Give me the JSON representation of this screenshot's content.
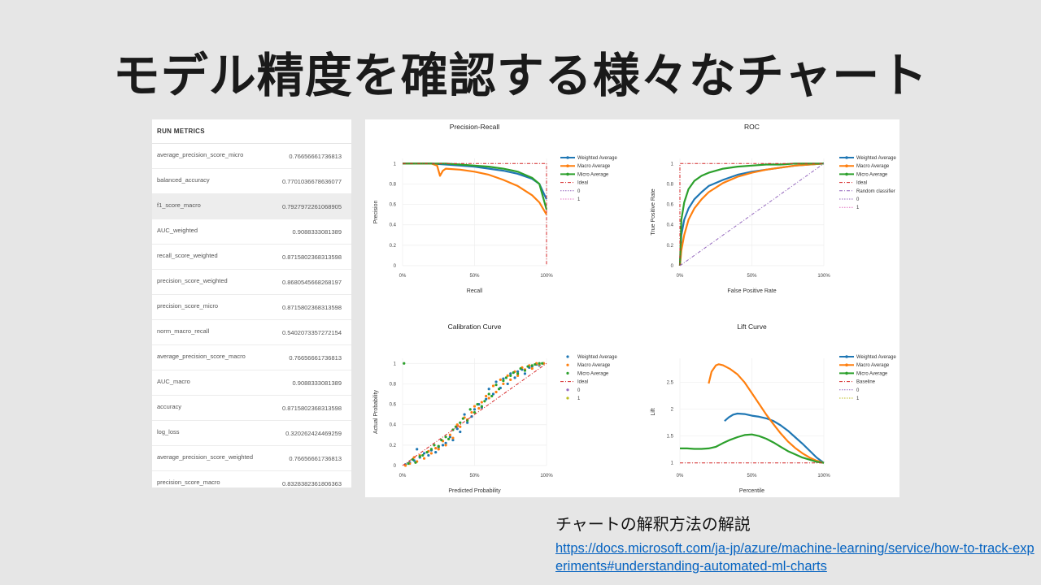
{
  "slide": {
    "title": "モデル精度を確認する様々なチャート",
    "caption": "チャートの解釈方法の解説",
    "link_text": "https://docs.microsoft.com/ja-jp/azure/machine-learning/service/how-to-track-experiments#understanding-automated-ml-charts"
  },
  "run_metrics": {
    "header": "RUN METRICS",
    "rows": [
      {
        "name": "average_precision_score_micro",
        "value": "0.76656661736813"
      },
      {
        "name": "balanced_accuracy",
        "value": "0.7701036678636077"
      },
      {
        "name": "f1_score_macro",
        "value": "0.7927972261068905"
      },
      {
        "name": "AUC_weighted",
        "value": "0.9088333081389"
      },
      {
        "name": "recall_score_weighted",
        "value": "0.8715802368313598"
      },
      {
        "name": "precision_score_weighted",
        "value": "0.8680545668268197"
      },
      {
        "name": "precision_score_micro",
        "value": "0.8715802368313598"
      },
      {
        "name": "norm_macro_recall",
        "value": "0.5402073357272154"
      },
      {
        "name": "average_precision_score_macro",
        "value": "0.76656661736813"
      },
      {
        "name": "AUC_macro",
        "value": "0.9088333081389"
      },
      {
        "name": "accuracy",
        "value": "0.8715802368313598"
      },
      {
        "name": "log_loss",
        "value": "0.320262424469259"
      },
      {
        "name": "average_precision_score_weighted",
        "value": "0.76656661736813"
      },
      {
        "name": "precision_score_macro",
        "value": "0.8328382361806363"
      }
    ]
  },
  "colors": {
    "weighted": "#1f77b4",
    "macro": "#ff7f0e",
    "micro": "#2ca02c",
    "ideal": "#d62728",
    "random": "#9467bd",
    "c0": "#9467bd",
    "c1": "#e377c2",
    "c1b": "#bcbd22"
  },
  "chart_data": [
    {
      "type": "line",
      "title": "Precision-Recall",
      "xlabel": "Recall",
      "ylabel": "Precision",
      "xlim": [
        0,
        1
      ],
      "ylim": [
        0,
        1.05
      ],
      "xticks": [
        "0%",
        "50%",
        "100%"
      ],
      "yticks": [
        "0",
        "0.2",
        "0.4",
        "0.6",
        "0.8",
        "1"
      ],
      "legend": [
        "Weighted Average",
        "Macro Average",
        "Micro Average",
        "Ideal",
        "0",
        "1"
      ],
      "series": [
        {
          "name": "Weighted Average",
          "x": [
            0,
            0.2,
            0.3,
            0.4,
            0.5,
            0.6,
            0.7,
            0.8,
            0.9,
            0.95,
            1.0
          ],
          "y": [
            1,
            1,
            0.99,
            0.98,
            0.97,
            0.95,
            0.93,
            0.9,
            0.85,
            0.8,
            0.65
          ]
        },
        {
          "name": "Macro Average",
          "x": [
            0,
            0.2,
            0.24,
            0.26,
            0.28,
            0.3,
            0.4,
            0.5,
            0.6,
            0.7,
            0.8,
            0.9,
            0.95,
            1.0
          ],
          "y": [
            1,
            1,
            0.98,
            0.88,
            0.93,
            0.95,
            0.94,
            0.92,
            0.89,
            0.84,
            0.78,
            0.69,
            0.62,
            0.5
          ]
        },
        {
          "name": "Micro Average",
          "x": [
            0,
            0.2,
            0.3,
            0.4,
            0.5,
            0.6,
            0.7,
            0.8,
            0.9,
            0.95,
            1.0
          ],
          "y": [
            1,
            1,
            1,
            0.99,
            0.98,
            0.97,
            0.95,
            0.92,
            0.86,
            0.8,
            0.55
          ]
        },
        {
          "name": "Ideal",
          "x": [
            0,
            1,
            1
          ],
          "y": [
            1,
            1,
            0
          ]
        }
      ]
    },
    {
      "type": "line",
      "title": "ROC",
      "xlabel": "False Positive Rate",
      "ylabel": "True Positive Rate",
      "xlim": [
        0,
        1
      ],
      "ylim": [
        0,
        1.05
      ],
      "xticks": [
        "0%",
        "50%",
        "100%"
      ],
      "yticks": [
        "0",
        "0.2",
        "0.4",
        "0.6",
        "0.8",
        "1"
      ],
      "legend": [
        "Weighted Average",
        "Macro Average",
        "Micro Average",
        "Ideal",
        "Random classifier",
        "0",
        "1"
      ],
      "series": [
        {
          "name": "Weighted Average",
          "x": [
            0,
            0.01,
            0.03,
            0.06,
            0.1,
            0.15,
            0.2,
            0.3,
            0.4,
            0.5,
            0.6,
            0.7,
            0.8,
            0.9,
            1.0
          ],
          "y": [
            0,
            0.3,
            0.45,
            0.56,
            0.65,
            0.72,
            0.78,
            0.84,
            0.89,
            0.92,
            0.94,
            0.96,
            0.98,
            0.99,
            1
          ]
        },
        {
          "name": "Macro Average",
          "x": [
            0,
            0.01,
            0.03,
            0.06,
            0.1,
            0.15,
            0.2,
            0.3,
            0.4,
            0.5,
            0.6,
            0.7,
            0.8,
            0.9,
            1.0
          ],
          "y": [
            0,
            0.15,
            0.3,
            0.45,
            0.56,
            0.65,
            0.72,
            0.81,
            0.87,
            0.91,
            0.94,
            0.96,
            0.98,
            0.99,
            1
          ]
        },
        {
          "name": "Micro Average",
          "x": [
            0,
            0.01,
            0.03,
            0.06,
            0.1,
            0.15,
            0.2,
            0.3,
            0.4,
            0.5,
            0.6,
            0.7,
            0.8,
            0.9,
            1.0
          ],
          "y": [
            0,
            0.45,
            0.62,
            0.75,
            0.83,
            0.88,
            0.91,
            0.95,
            0.97,
            0.98,
            0.99,
            0.99,
            1,
            1,
            1
          ]
        },
        {
          "name": "Ideal",
          "x": [
            0,
            0,
            1
          ],
          "y": [
            0,
            1,
            1
          ]
        },
        {
          "name": "Random classifier",
          "x": [
            0,
            1
          ],
          "y": [
            0,
            1
          ]
        }
      ]
    },
    {
      "type": "scatter",
      "title": "Calibration Curve",
      "xlabel": "Predicted Probability",
      "ylabel": "Actual Probability",
      "xlim": [
        0,
        1
      ],
      "ylim": [
        0,
        1.05
      ],
      "xticks": [
        "0%",
        "50%",
        "100%"
      ],
      "yticks": [
        "0",
        "0.2",
        "0.4",
        "0.6",
        "0.8",
        "1"
      ],
      "legend": [
        "Weighted Average",
        "Macro Average",
        "Micro Average",
        "Ideal",
        "0",
        "1"
      ],
      "series": [
        {
          "name": "Weighted Average",
          "x": [
            0.02,
            0.05,
            0.08,
            0.1,
            0.12,
            0.15,
            0.18,
            0.2,
            0.23,
            0.25,
            0.28,
            0.3,
            0.33,
            0.35,
            0.38,
            0.4,
            0.43,
            0.45,
            0.48,
            0.5,
            0.53,
            0.55,
            0.58,
            0.6,
            0.63,
            0.65,
            0.68,
            0.7,
            0.73,
            0.75,
            0.78,
            0.8,
            0.83,
            0.85,
            0.88,
            0.9,
            0.93,
            0.95,
            0.98
          ],
          "y": [
            0.01,
            0.03,
            0.05,
            0.16,
            0.08,
            0.12,
            0.1,
            0.15,
            0.13,
            0.18,
            0.2,
            0.22,
            0.28,
            0.25,
            0.36,
            0.33,
            0.5,
            0.42,
            0.48,
            0.55,
            0.6,
            0.57,
            0.65,
            0.75,
            0.7,
            0.82,
            0.76,
            0.85,
            0.8,
            0.9,
            0.86,
            0.92,
            0.94,
            0.9,
            0.96,
            0.97,
            0.99,
            0.98,
            1.0
          ]
        },
        {
          "name": "Macro Average",
          "x": [
            0.02,
            0.05,
            0.08,
            0.1,
            0.12,
            0.15,
            0.18,
            0.2,
            0.23,
            0.25,
            0.28,
            0.3,
            0.33,
            0.35,
            0.38,
            0.4,
            0.43,
            0.45,
            0.48,
            0.5,
            0.53,
            0.55,
            0.58,
            0.6,
            0.63,
            0.65,
            0.68,
            0.7,
            0.73,
            0.75,
            0.78,
            0.8,
            0.83,
            0.85,
            0.88,
            0.9,
            0.93,
            0.95,
            0.98
          ],
          "y": [
            0.0,
            0.02,
            0.08,
            0.04,
            0.1,
            0.07,
            0.14,
            0.12,
            0.17,
            0.16,
            0.24,
            0.2,
            0.3,
            0.27,
            0.4,
            0.38,
            0.47,
            0.45,
            0.52,
            0.58,
            0.56,
            0.62,
            0.68,
            0.66,
            0.78,
            0.72,
            0.84,
            0.8,
            0.88,
            0.84,
            0.92,
            0.88,
            0.96,
            0.94,
            0.98,
            0.95,
            1.0,
            0.99,
            1.0
          ]
        },
        {
          "name": "Micro Average",
          "x": [
            0.01,
            0.04,
            0.07,
            0.09,
            0.12,
            0.14,
            0.17,
            0.2,
            0.22,
            0.25,
            0.27,
            0.3,
            0.32,
            0.35,
            0.37,
            0.4,
            0.42,
            0.45,
            0.47,
            0.5,
            0.52,
            0.55,
            0.57,
            0.6,
            0.62,
            0.65,
            0.67,
            0.7,
            0.72,
            0.75,
            0.77,
            0.8,
            0.82,
            0.85,
            0.87,
            0.9,
            0.92,
            0.95,
            0.97
          ],
          "y": [
            1.0,
            0.02,
            0.06,
            0.03,
            0.09,
            0.1,
            0.13,
            0.16,
            0.2,
            0.19,
            0.25,
            0.28,
            0.26,
            0.35,
            0.38,
            0.42,
            0.46,
            0.44,
            0.55,
            0.52,
            0.6,
            0.58,
            0.63,
            0.7,
            0.68,
            0.79,
            0.75,
            0.83,
            0.86,
            0.88,
            0.91,
            0.9,
            0.95,
            0.93,
            0.97,
            0.98,
            0.99,
            1.0,
            1.0
          ]
        },
        {
          "name": "Ideal",
          "x": [
            0,
            1
          ],
          "y": [
            0,
            1
          ]
        }
      ]
    },
    {
      "type": "line",
      "title": "Lift Curve",
      "xlabel": "Percentile",
      "ylabel": "Lift",
      "xlim": [
        0,
        1
      ],
      "ylim": [
        0.95,
        2.95
      ],
      "xticks": [
        "0%",
        "50%",
        "100%"
      ],
      "yticks": [
        "1",
        "1.5",
        "2",
        "2.5"
      ],
      "legend": [
        "Weighted Average",
        "Macro Average",
        "Micro Average",
        "Baseline",
        "0",
        "1"
      ],
      "series": [
        {
          "name": "Weighted Average",
          "x": [
            0.31,
            0.34,
            0.37,
            0.4,
            0.45,
            0.5,
            0.55,
            0.6,
            0.65,
            0.7,
            0.75,
            0.8,
            0.85,
            0.9,
            0.95,
            1.0
          ],
          "y": [
            1.78,
            1.85,
            1.9,
            1.92,
            1.91,
            1.88,
            1.86,
            1.83,
            1.78,
            1.7,
            1.6,
            1.48,
            1.36,
            1.23,
            1.1,
            1.0
          ]
        },
        {
          "name": "Macro Average",
          "x": [
            0.2,
            0.22,
            0.25,
            0.27,
            0.3,
            0.35,
            0.4,
            0.45,
            0.5,
            0.55,
            0.6,
            0.65,
            0.7,
            0.75,
            0.8,
            0.85,
            0.9,
            0.95,
            1.0
          ],
          "y": [
            2.48,
            2.7,
            2.82,
            2.84,
            2.82,
            2.75,
            2.65,
            2.5,
            2.3,
            2.1,
            1.9,
            1.72,
            1.55,
            1.4,
            1.28,
            1.18,
            1.1,
            1.04,
            1.0
          ]
        },
        {
          "name": "Micro Average",
          "x": [
            0,
            0.05,
            0.1,
            0.15,
            0.2,
            0.25,
            0.3,
            0.35,
            0.4,
            0.45,
            0.5,
            0.55,
            0.6,
            0.65,
            0.7,
            0.75,
            0.8,
            0.85,
            0.9,
            0.95,
            1.0
          ],
          "y": [
            1.27,
            1.27,
            1.26,
            1.26,
            1.27,
            1.3,
            1.37,
            1.43,
            1.48,
            1.52,
            1.53,
            1.5,
            1.45,
            1.38,
            1.3,
            1.22,
            1.16,
            1.1,
            1.06,
            1.02,
            1.0
          ]
        },
        {
          "name": "Baseline",
          "x": [
            0,
            1
          ],
          "y": [
            1,
            1
          ]
        }
      ]
    }
  ]
}
